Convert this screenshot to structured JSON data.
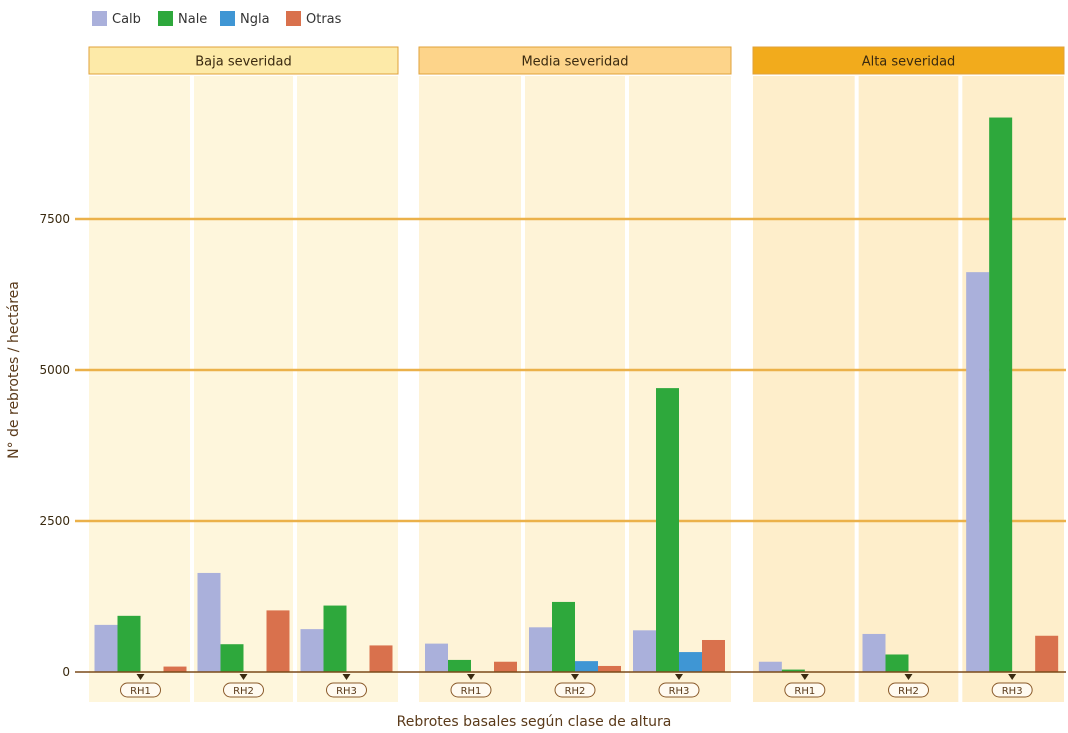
{
  "chart_data": {
    "type": "bar",
    "title": "",
    "xlabel": "Rebrotes basales según clase de altura",
    "ylabel": "N° de rebrotes / hectárea",
    "ylim": [
      0,
      9500
    ],
    "yticks": [
      0,
      2500,
      5000,
      7500
    ],
    "grid": true,
    "legend_position": "top-left",
    "series": [
      {
        "name": "Calb",
        "color": "#aab0db"
      },
      {
        "name": "Nale",
        "color": "#2ea83c"
      },
      {
        "name": "Ngla",
        "color": "#3f96d4"
      },
      {
        "name": "Otras",
        "color": "#d9714d"
      }
    ],
    "panels": [
      {
        "label": "Baja severidad",
        "header_color": "#fdeaa8",
        "bg_color": "#fef6dc",
        "groups": [
          {
            "label": "RH1",
            "values": [
              780,
              930,
              0,
              90
            ]
          },
          {
            "label": "RH2",
            "values": [
              1640,
              460,
              0,
              1020
            ]
          },
          {
            "label": "RH3",
            "values": [
              710,
              1100,
              0,
              440
            ]
          }
        ]
      },
      {
        "label": "Media severidad",
        "header_color": "#fdd48a",
        "bg_color": "#fef3d7",
        "groups": [
          {
            "label": "RH1",
            "values": [
              470,
              200,
              0,
              170
            ]
          },
          {
            "label": "RH2",
            "values": [
              740,
              1160,
              180,
              100
            ]
          },
          {
            "label": "RH3",
            "values": [
              690,
              4700,
              330,
              530
            ]
          }
        ]
      },
      {
        "label": "Alta severidad",
        "header_color": "#f2ab1c",
        "bg_color": "#feeecb",
        "groups": [
          {
            "label": "RH1",
            "values": [
              170,
              40,
              0,
              0
            ]
          },
          {
            "label": "RH2",
            "values": [
              630,
              290,
              0,
              0
            ]
          },
          {
            "label": "RH3",
            "values": [
              6620,
              9180,
              0,
              600
            ]
          }
        ]
      }
    ]
  },
  "colors": {
    "gridline": "#ebb14a",
    "axis": "#7a4a1a",
    "text": "#3a2a10"
  }
}
